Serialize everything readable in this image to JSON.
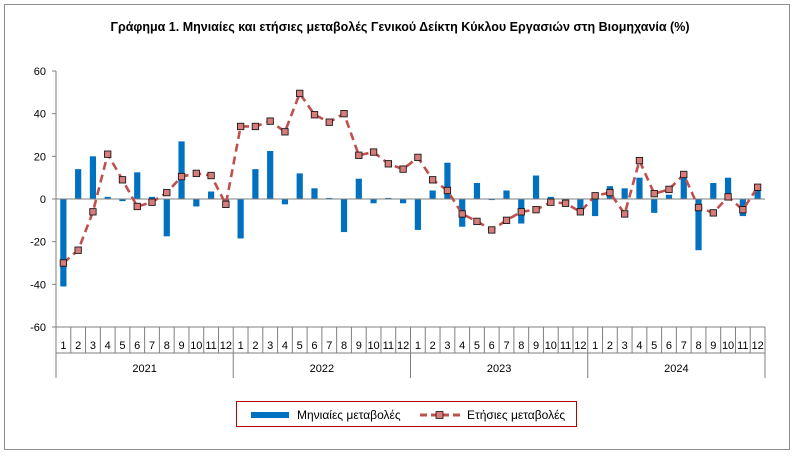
{
  "title": "Γράφημα 1.  Μηνιαίες και ετήσιες μεταβολές  Γενικού Δείκτη Κύκλου Εργασιών στη Βιομηχανία  (%)",
  "colors": {
    "bar": "#0070c0",
    "line": "#c0504d",
    "marker_fill": "#d77b7b",
    "marker_stroke": "#1a1a1a"
  },
  "legend": {
    "bar_label": "Μηνιαίες μεταβολές",
    "line_label": "Ετήσιες μεταβολές"
  },
  "chart_data": {
    "type": "bar",
    "title": "Γράφημα 1.  Μηνιαίες και ετήσιες μεταβολές  Γενικού Δείκτη Κύκλου Εργασιών στη Βιομηχανία  (%)",
    "ylim": [
      -60,
      60
    ],
    "yticks": [
      -60,
      -40,
      -20,
      0,
      20,
      40,
      60
    ],
    "grid": false,
    "legend_position": "bottom",
    "years": [
      "2021",
      "2022",
      "2023",
      "2024"
    ],
    "months": [
      "1",
      "2",
      "3",
      "4",
      "5",
      "6",
      "7",
      "8",
      "9",
      "10",
      "11",
      "12"
    ],
    "series": [
      {
        "name": "Μηνιαίες μεταβολές",
        "type": "bar",
        "values": [
          -41,
          14,
          20,
          1,
          -1,
          12.5,
          1,
          -17.5,
          27,
          -3.5,
          3.5,
          -1,
          -18.5,
          14,
          22.5,
          -2.5,
          12,
          5,
          0.5,
          -15.5,
          9.5,
          -2,
          0.5,
          -2,
          -14.5,
          4,
          17,
          -13,
          7.5,
          -0.5,
          4,
          -11.5,
          11,
          1,
          -1,
          -5,
          -8,
          6,
          5,
          10,
          -6.5,
          2,
          11,
          -24,
          7.5,
          10,
          -8,
          6
        ]
      },
      {
        "name": "Ετήσιες μεταβολές",
        "type": "line",
        "values": [
          -30,
          -24,
          -6,
          21,
          9,
          -3.5,
          -1.5,
          3,
          10.5,
          12,
          11,
          -2.5,
          34,
          34,
          36.5,
          31.5,
          49.5,
          39.5,
          36,
          40,
          20.5,
          22,
          16.5,
          14,
          19.5,
          9,
          4,
          -7,
          -10.5,
          -14.5,
          -10,
          -6,
          -5,
          -1.5,
          -2,
          -6,
          1.5,
          3,
          -7,
          18,
          2.5,
          4.5,
          11.5,
          -4,
          -6.5,
          1,
          -5,
          5.5
        ]
      }
    ]
  }
}
